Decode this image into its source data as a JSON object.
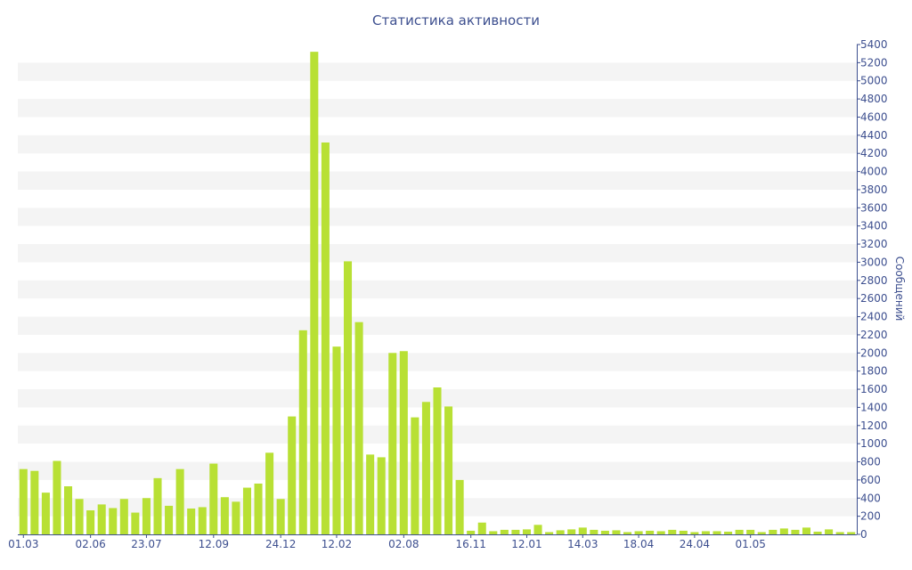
{
  "chart_data": {
    "type": "bar",
    "title": "Статистика активности",
    "ylabel": "Сообщений",
    "xlabel": "",
    "ylim": [
      0,
      5400
    ],
    "y_ticks": [
      0,
      200,
      400,
      600,
      800,
      1000,
      1200,
      1400,
      1600,
      1800,
      2000,
      2200,
      2400,
      2600,
      2800,
      3000,
      3200,
      3400,
      3600,
      3800,
      4000,
      4200,
      4400,
      4600,
      4800,
      5000,
      5200,
      5400
    ],
    "x_tick_labels": [
      {
        "label": "01.03",
        "index": 0
      },
      {
        "label": "02.06",
        "index": 6
      },
      {
        "label": "23.07",
        "index": 11
      },
      {
        "label": "12.09",
        "index": 17
      },
      {
        "label": "24.12",
        "index": 23
      },
      {
        "label": "12.02",
        "index": 28
      },
      {
        "label": "02.08",
        "index": 34
      },
      {
        "label": "16.11",
        "index": 40
      },
      {
        "label": "12.01",
        "index": 45
      },
      {
        "label": "14.03",
        "index": 50
      },
      {
        "label": "18.04",
        "index": 55
      },
      {
        "label": "24.04",
        "index": 60
      },
      {
        "label": "01.05",
        "index": 65
      }
    ],
    "values": [
      720,
      700,
      460,
      810,
      530,
      390,
      265,
      330,
      290,
      390,
      240,
      400,
      620,
      315,
      720,
      285,
      300,
      780,
      410,
      360,
      515,
      560,
      900,
      390,
      1300,
      2250,
      5320,
      4320,
      2070,
      3010,
      2340,
      880,
      850,
      2000,
      2020,
      1290,
      1460,
      1620,
      1410,
      600,
      40,
      130,
      35,
      50,
      50,
      55,
      105,
      25,
      45,
      55,
      75,
      50,
      40,
      45,
      25,
      35,
      40,
      35,
      50,
      40,
      25,
      35,
      35,
      30,
      50,
      50,
      25,
      50,
      65,
      50,
      75,
      30,
      55,
      25,
      25
    ],
    "color": "#b8e034",
    "grid": true,
    "grid_band_color": "#f4f4f4",
    "axis_color": "#3d4f8f",
    "y_axis_side": "right"
  }
}
